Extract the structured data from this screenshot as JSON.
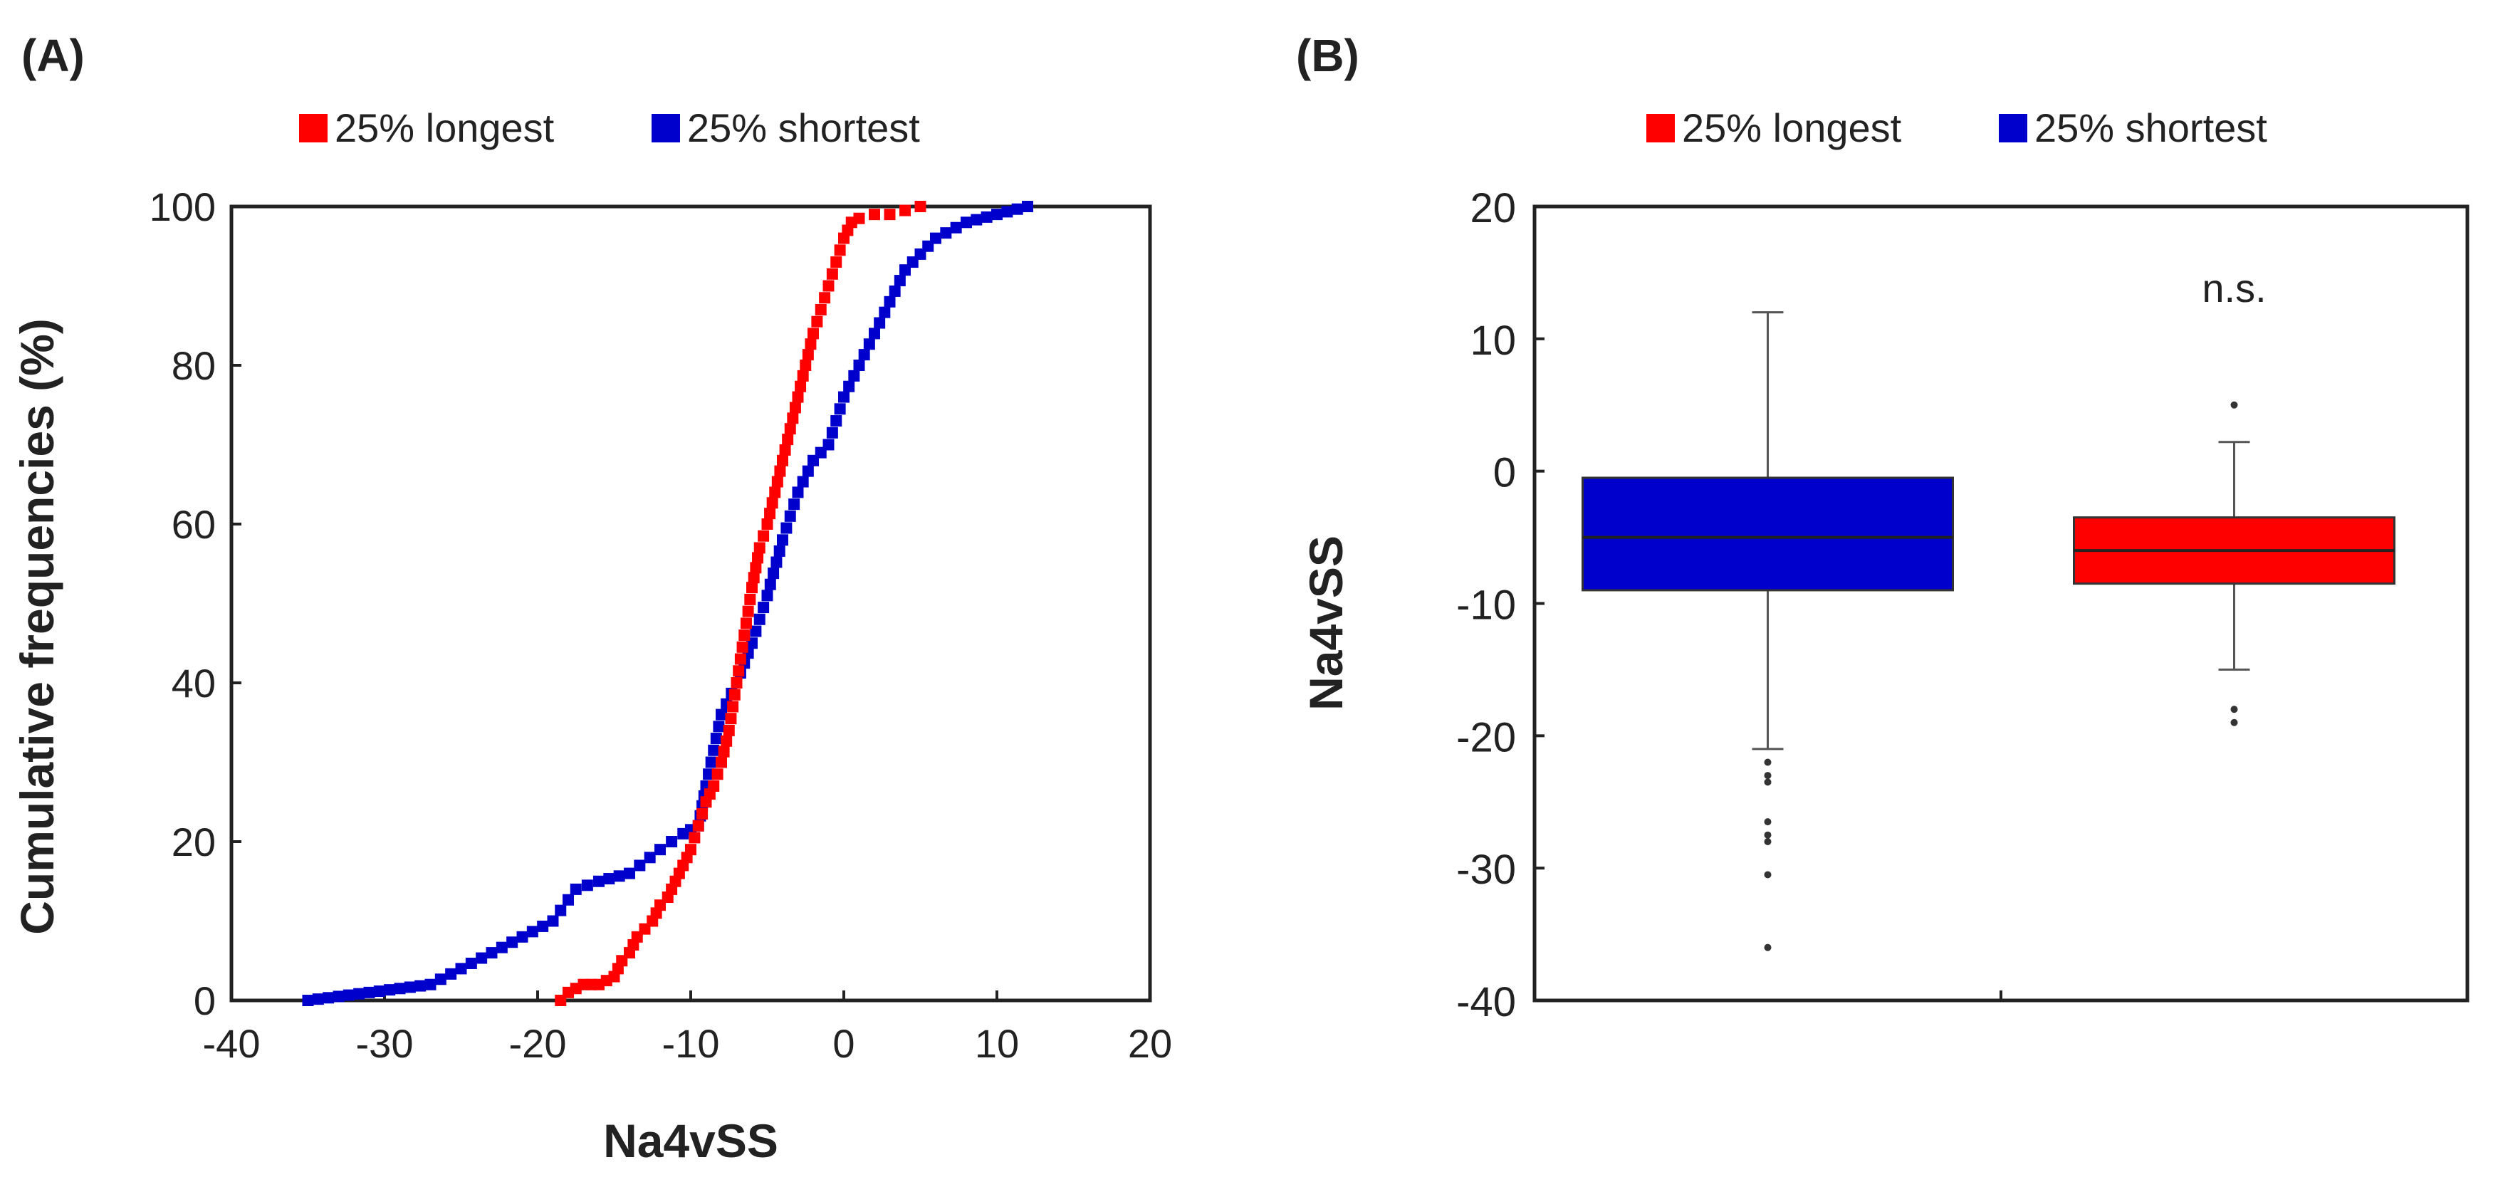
{
  "colors": {
    "red": "#ff0000",
    "blue": "#0000cc",
    "axis": "#222222"
  },
  "chart_data": [
    {
      "type": "line",
      "panel_label": "(A)",
      "title": "",
      "xlabel": "Na4vSS",
      "ylabel": "Cumulative frequencies (%)",
      "xlim": [
        -40,
        20
      ],
      "ylim": [
        0,
        100
      ],
      "xticks": [
        "-40",
        "-30",
        "-20",
        "-10",
        "0",
        "10",
        "20"
      ],
      "yticks": [
        "0",
        "20",
        "40",
        "60",
        "80",
        "100"
      ],
      "legend": {
        "position": "top",
        "entries": [
          "25% longest",
          "25% shortest"
        ]
      },
      "series": [
        {
          "name": "25% longest",
          "color": "#ff0000",
          "x": [
            -18.5,
            -18,
            -17.5,
            -17,
            -16.5,
            -16,
            -15.5,
            -15,
            -14.5,
            -14,
            -13.5,
            -13,
            -12.5,
            -12,
            -11.5,
            -11,
            -10.5,
            -10,
            -9.5,
            -9,
            -8.5,
            -8,
            -7.5,
            -7,
            -6.5,
            -6,
            -5.5,
            -5,
            -4.5,
            -4,
            -3.5,
            -3,
            -2.5,
            -2,
            -1.5,
            -1,
            -0.5,
            0,
            0.5,
            1,
            2,
            3,
            4,
            5
          ],
          "y": [
            0,
            1,
            1.5,
            2,
            2,
            2,
            2.5,
            3,
            5,
            6,
            8,
            9,
            10,
            12,
            13,
            15,
            17,
            19,
            22,
            25,
            27,
            30,
            34,
            40,
            46,
            52,
            57,
            60,
            64,
            68,
            72,
            76,
            80,
            84,
            87,
            90,
            93,
            96,
            98,
            98.5,
            99,
            99,
            99.5,
            100
          ]
        },
        {
          "name": "25% shortest",
          "color": "#0000cc",
          "x": [
            -35,
            -33,
            -31,
            -29,
            -27,
            -25,
            -23,
            -21,
            -19,
            -17.5,
            -16,
            -14,
            -12,
            -10.5,
            -9.5,
            -9,
            -8,
            -7,
            -6,
            -5,
            -4,
            -3,
            -2,
            -1,
            0,
            1,
            2,
            3,
            4,
            5,
            6,
            8,
            10,
            12
          ],
          "y": [
            0,
            0.5,
            1,
            1.5,
            2,
            4,
            6,
            8,
            10,
            14,
            15,
            16,
            19,
            21,
            22,
            27,
            36,
            40,
            45,
            51,
            58,
            64,
            68,
            70,
            76,
            80,
            84,
            88,
            92,
            94,
            96,
            98,
            99,
            100
          ]
        }
      ]
    },
    {
      "type": "box",
      "panel_label": "(B)",
      "ylabel": "Na4vSS",
      "ylim": [
        -40,
        20
      ],
      "yticks": [
        "20",
        "10",
        "0",
        "-10",
        "-20",
        "-30",
        "-40"
      ],
      "legend": {
        "position": "top",
        "entries": [
          "25% longest",
          "25% shortest"
        ]
      },
      "annotation": "n.s.",
      "boxes": [
        {
          "name": "25% shortest",
          "color": "#0000cc",
          "whisker_low": -21,
          "q1": -9,
          "median": -5,
          "q3": -0.5,
          "whisker_high": 12,
          "outliers": [
            -22,
            -23,
            -23.5,
            -26.5,
            -27.5,
            -28,
            -30.5,
            -36
          ]
        },
        {
          "name": "25% longest",
          "color": "#ff0000",
          "whisker_low": -15,
          "q1": -8.5,
          "median": -6,
          "q3": -3.5,
          "whisker_high": 2.2,
          "outliers": [
            5,
            -18,
            -19
          ]
        }
      ]
    }
  ]
}
